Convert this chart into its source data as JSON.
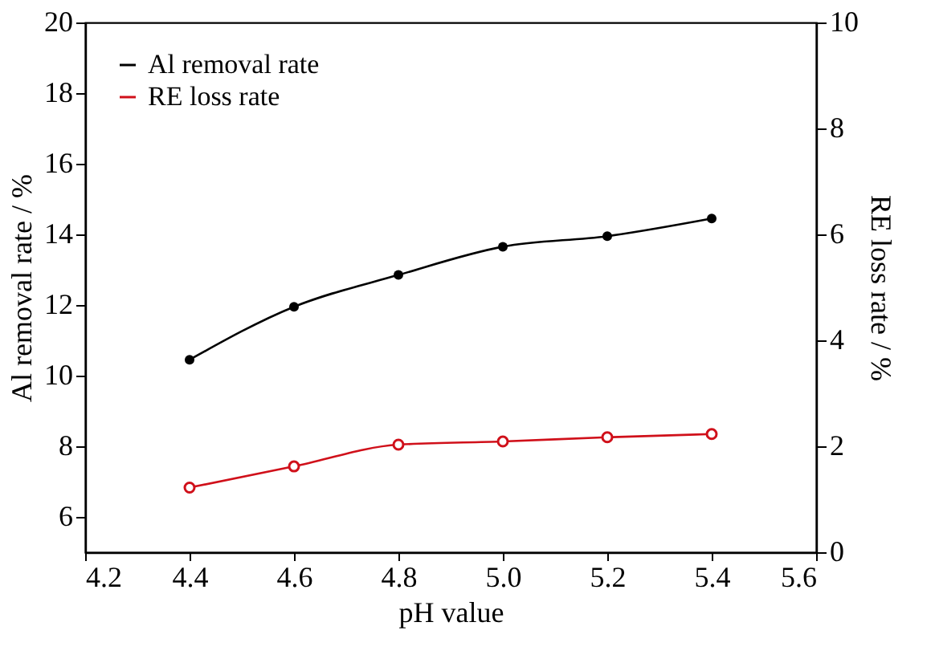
{
  "chart_data": {
    "type": "line",
    "xlabel": "pH value",
    "ylabel": "Al removal rate / %",
    "y2label": "RE loss rate / %",
    "x": [
      4.4,
      4.6,
      4.8,
      5.0,
      5.2,
      5.4
    ],
    "series": [
      {
        "name": "Al removal rate",
        "color": "#000000",
        "values": [
          10.45,
          11.95,
          12.85,
          13.65,
          13.95,
          14.45
        ]
      },
      {
        "name": "RE loss rate",
        "color": "#d0101a",
        "axis": "y2",
        "values": [
          1.22,
          1.62,
          2.03,
          2.09,
          2.17,
          2.23
        ]
      }
    ],
    "xlim": [
      4.2,
      5.6
    ],
    "xticks": [
      4.2,
      4.4,
      4.6,
      4.8,
      {
        "value": 5.0,
        "label": "5.0"
      },
      5.2,
      5.4,
      5.6
    ],
    "ylim": [
      5,
      20
    ],
    "yticks": [
      6,
      8,
      10,
      12,
      14,
      16,
      18,
      20
    ],
    "y2lim": [
      0,
      10
    ],
    "y2ticks": [
      0,
      2,
      4,
      6,
      8,
      10
    ],
    "marker": "circle",
    "line_style": "solid",
    "grid": false,
    "legend": "top left"
  }
}
